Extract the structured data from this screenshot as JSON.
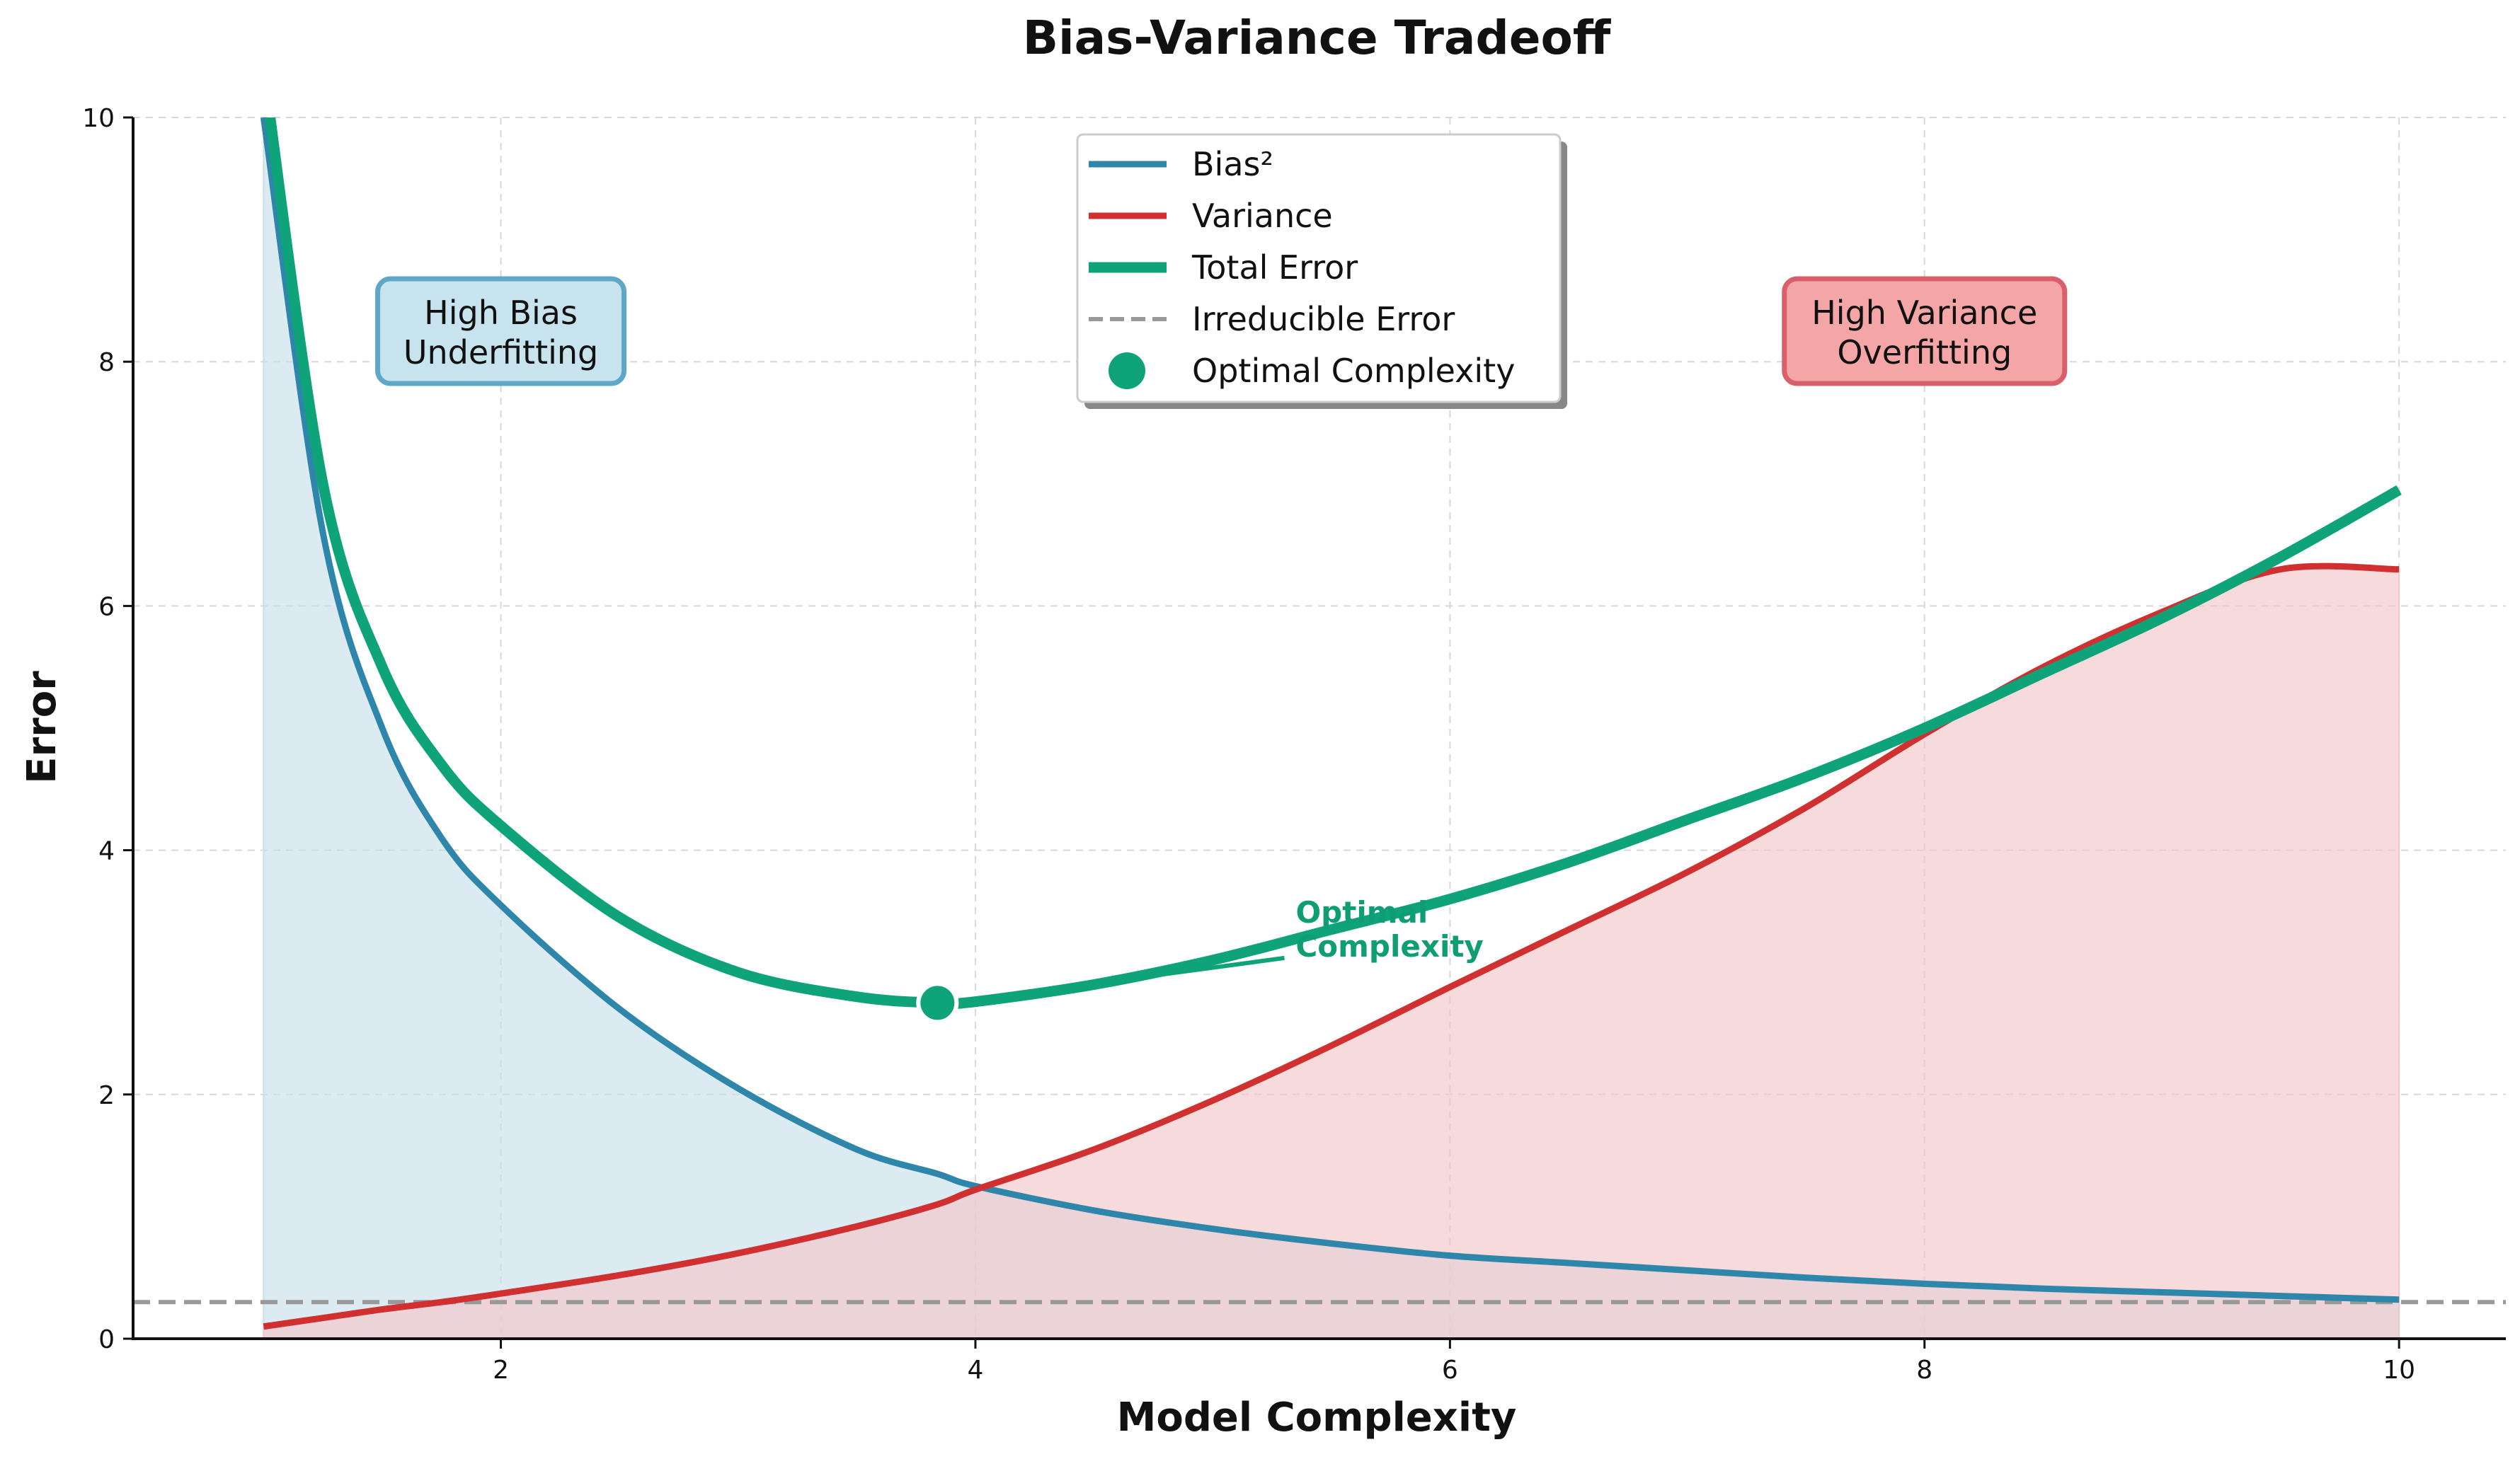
{
  "chart_data": {
    "type": "line",
    "title": "Bias-Variance Tradeoff",
    "xlabel": "Model Complexity",
    "ylabel": "Error",
    "xlim": [
      0.45,
      10.45
    ],
    "ylim": [
      0,
      10
    ],
    "xticks": [
      2,
      4,
      6,
      8,
      10
    ],
    "yticks": [
      0,
      2,
      4,
      6,
      8,
      10
    ],
    "grid": true,
    "legend_position": "top-center",
    "x": [
      1,
      1.25,
      1.5,
      1.75,
      2,
      2.5,
      3,
      3.5,
      3.84,
      4,
      4.5,
      5,
      5.5,
      6,
      6.5,
      7,
      7.5,
      8,
      8.5,
      9,
      9.5,
      10
    ],
    "series": [
      {
        "name": "Bias²",
        "color": "#2e86ab",
        "values": [
          10.0,
          6.6,
          5.0,
          4.1,
          3.55,
          2.7,
          2.05,
          1.55,
          1.35,
          1.25,
          1.05,
          0.9,
          0.78,
          0.68,
          0.62,
          0.56,
          0.5,
          0.45,
          0.41,
          0.38,
          0.35,
          0.32
        ]
      },
      {
        "name": "Variance",
        "color": "#d03030",
        "values": [
          0.1,
          0.17,
          0.24,
          0.3,
          0.37,
          0.52,
          0.7,
          0.92,
          1.1,
          1.22,
          1.55,
          1.95,
          2.4,
          2.88,
          3.35,
          3.82,
          4.35,
          4.95,
          5.5,
          5.95,
          6.3,
          6.3
        ]
      },
      {
        "name": "Total Error",
        "color": "#0fa37a",
        "values": [
          10.4,
          7.0,
          5.5,
          4.7,
          4.2,
          3.45,
          3.0,
          2.8,
          2.75,
          2.76,
          2.9,
          3.1,
          3.35,
          3.6,
          3.9,
          4.25,
          4.6,
          5.0,
          5.45,
          5.9,
          6.4,
          6.95
        ]
      }
    ],
    "reference_lines": [
      {
        "name": "Irreducible Error",
        "y": 0.3,
        "color": "#999999"
      }
    ],
    "markers": [
      {
        "name": "Optimal Complexity",
        "x": 3.84,
        "y": 2.75,
        "color": "#0fa37a"
      }
    ],
    "annotations": [
      {
        "text": "Optimal Complexity",
        "lines": [
          "Optimal",
          "Complexity"
        ],
        "x": 5.35,
        "y": 3.5,
        "target_x": 3.84,
        "target_y": 2.75,
        "color": "#0fa37a"
      }
    ],
    "region_labels": [
      {
        "lines": [
          "High Bias",
          "Underfitting"
        ],
        "x": 2.0,
        "y": 8.25,
        "fill": "#c6e3ee",
        "stroke": "#5ea7c7"
      },
      {
        "lines": [
          "High Variance",
          "Overfitting"
        ],
        "x": 8.0,
        "y": 8.25,
        "fill": "#f4a5a5",
        "stroke": "#d9606a"
      }
    ],
    "fills": {
      "bias_color": "#c9dfea",
      "variance_color": "#f2c6c9"
    }
  }
}
